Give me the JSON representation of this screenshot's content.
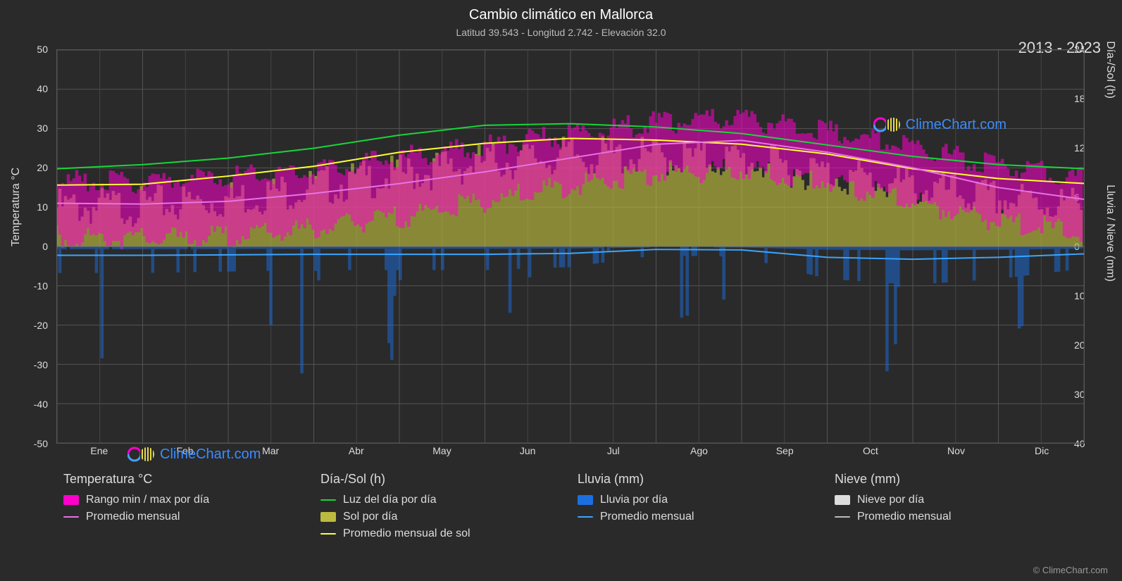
{
  "title": "Cambio climático en Mallorca",
  "subtitle": "Latitud 39.543 - Longitud 2.742 - Elevación 32.0",
  "year_range": "2013 - 2023",
  "y1_label": "Temperatura °C",
  "y2a_label": "Día-/Sol (h)",
  "y2b_label": "Lluvia / Nieve (mm)",
  "credit": "© ClimeChart.com",
  "watermark": "ClimeChart.com",
  "months": [
    "Ene",
    "Feb",
    "Mar",
    "Abr",
    "May",
    "Jun",
    "Jul",
    "Ago",
    "Sep",
    "Oct",
    "Nov",
    "Dic"
  ],
  "y1_ticks": [
    50,
    40,
    30,
    20,
    10,
    0,
    -10,
    -20,
    -30,
    -40,
    -50
  ],
  "y2_top_ticks": [
    24,
    18,
    12,
    6,
    0
  ],
  "y2_bot_ticks": [
    10,
    20,
    30,
    40
  ],
  "y1_min": -50,
  "y1_max": 50,
  "y2_top_min": 0,
  "y2_top_max": 24,
  "y2_bot_min": 0,
  "y2_bot_max": 40,
  "colors": {
    "bg": "#2a2a2a",
    "grid": "#555555",
    "temp_range": "#ff00cc",
    "temp_avg": "#e773e7",
    "daylight": "#18d63a",
    "sun_area": "#bcbb3f",
    "sun_avg": "#ffff33",
    "rain_bar": "#1b6fe0",
    "rain_avg": "#3aa5ff",
    "snow_bar": "#dddddd",
    "snow_avg": "#bbbbbb"
  },
  "legend": {
    "temp": {
      "title": "Temperatura °C",
      "items": [
        {
          "label": "Rango min / max por día",
          "type": "sw",
          "color": "#ff00cc"
        },
        {
          "label": "Promedio mensual",
          "type": "line",
          "color": "#e773e7"
        }
      ]
    },
    "sun": {
      "title": "Día-/Sol (h)",
      "items": [
        {
          "label": "Luz del día por día",
          "type": "line",
          "color": "#18d63a"
        },
        {
          "label": "Sol por día",
          "type": "sw",
          "color": "#bcbb3f"
        },
        {
          "label": "Promedio mensual de sol",
          "type": "line",
          "color": "#ffff33"
        }
      ]
    },
    "rain": {
      "title": "Lluvia (mm)",
      "items": [
        {
          "label": "Lluvia por día",
          "type": "sw",
          "color": "#1b6fe0"
        },
        {
          "label": "Promedio mensual",
          "type": "line",
          "color": "#3aa5ff"
        }
      ]
    },
    "snow": {
      "title": "Nieve (mm)",
      "items": [
        {
          "label": "Nieve por día",
          "type": "sw",
          "color": "#dddddd"
        },
        {
          "label": "Promedio mensual",
          "type": "line",
          "color": "#bbbbbb"
        }
      ]
    }
  },
  "series": {
    "daylight_h": [
      9.5,
      10.0,
      10.8,
      12.0,
      13.6,
      14.8,
      15.0,
      14.6,
      13.8,
      12.4,
      11.0,
      10.0,
      9.5
    ],
    "sun_avg_h": [
      7.5,
      7.6,
      8.6,
      9.8,
      11.5,
      12.6,
      13.2,
      13.0,
      12.5,
      11.3,
      9.5,
      8.3,
      7.7
    ],
    "temp_avg_c": [
      11.0,
      10.8,
      11.5,
      13.5,
      16.0,
      19.0,
      22.5,
      26.0,
      27.0,
      24.0,
      20.0,
      15.0,
      12.0
    ],
    "temp_min_band_c": [
      4.0,
      3.5,
      4.0,
      6.0,
      9.0,
      13.0,
      17.0,
      20.0,
      21.0,
      18.0,
      13.0,
      8.0,
      5.0
    ],
    "temp_max_band_c": [
      18.0,
      18.0,
      19.0,
      21.0,
      24.0,
      27.0,
      30.0,
      33.0,
      34.0,
      31.0,
      27.0,
      22.0,
      19.0
    ],
    "rain_avg_mm": [
      1.8,
      1.8,
      1.7,
      1.6,
      1.6,
      1.6,
      1.4,
      0.6,
      0.7,
      2.2,
      2.6,
      2.2,
      1.5
    ],
    "sun_area_top_h": [
      6.0,
      6.2,
      7.0,
      8.5,
      10.0,
      11.5,
      12.3,
      12.2,
      11.8,
      10.2,
      8.5,
      7.0,
      6.2
    ]
  }
}
